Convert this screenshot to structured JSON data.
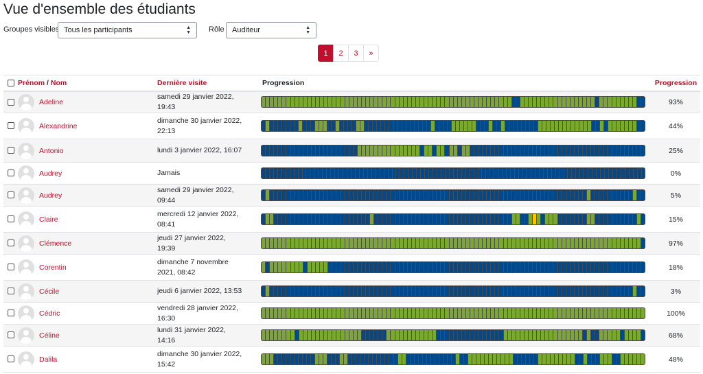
{
  "page": {
    "title": "Vue d'ensemble des étudiants"
  },
  "filters": {
    "groups_label": "Groupes visibles",
    "groups_value": "Tous les participants",
    "role_label": "Rôle",
    "role_value": "Auditeur"
  },
  "pagination": {
    "pages": [
      "1",
      "2",
      "3"
    ],
    "active": "1",
    "next": "»"
  },
  "colors": {
    "completed": "#7ba82f",
    "not_completed": "#00498c",
    "in_progress": "#ffc107",
    "accent": "#c10e2c"
  },
  "table": {
    "headers": {
      "first_name": "Prénom",
      "separator": " / ",
      "last_name": "Nom",
      "last_visit": "Dernière visite",
      "progress_bar": "Progression",
      "progress_pct": "Progression"
    },
    "rows": [
      {
        "name": "Adeline",
        "visit": "samedi 29 janvier 2022, 19:43",
        "pct": "93%",
        "height": 32,
        "bar": "CCCCCCCCCCCCCCCCCCCCCCCCCCCCCCCCCCCCCCCCCCCCCCCCCCCCCCCCCCCCNNCCCCCCCCCCCCCCCCCCNCCCCCCCCCNN"
      },
      {
        "name": "Alexandrine",
        "visit": "dimanche 30 janvier 2022, 22:13",
        "pct": "44%",
        "height": 38,
        "bar": "NCNNNNNNNCNNNCCCNNCNNNNCCNNNNNNNNNNNNNNNNCNNNNCCCCCCNNNCNNCNNNNNNNNCCCCCCCCCCCCCNNCNCCCCCCCNN"
      },
      {
        "name": "Antonio",
        "visit": "lundi 3 janvier 2022, 16:07",
        "pct": "25%",
        "height": 34,
        "bar": "NNNNNNNNNNNNNNNNNNNNNNNCCCCCCCCCCCCCCCNCCNCCNCCNCCNNNNNNNNNNNNNNNNNNNNNNNNNNNNNNNNNNNNNNNNNN"
      },
      {
        "name": "Audrey",
        "visit": "Jamais",
        "pct": "0%",
        "height": 32,
        "bar": "NNNNNNNNNNNNNNNNNNNNNNNNNNNNNNNNNNNNNNNNNNNNNNNNNNNNNNNNNNNNNNNNNNNNNNNNNNNNNNNNNNNNNNNNNNNNNN"
      },
      {
        "name": "Audrey",
        "visit": "samedi 29 janvier 2022, 09:44",
        "pct": "5%",
        "height": 32,
        "bar": "NCNNNNNNNNNNNNNNNNNNNNNNNNNNNNNNNNNNNNNNNNNNNNNNNNNNNNNNNNNNNNNNNNNNNNNNNNNNNNCNNNNNNNNNNCNN"
      },
      {
        "name": "Claire",
        "visit": "mercredi 12 janvier 2022, 08:41",
        "pct": "15%",
        "height": 38,
        "bar": "NCCNNNNNNNNNNNNNNNNNNNNNNNCNNNNNNNNNNNNNNNNNNNNNNNNNNNNNNNNNCCNNCPCNCCCNNNNNNNCCNNNNNNNNNNCN"
      },
      {
        "name": "Clémence",
        "visit": "jeudi 27 janvier 2022, 19:39",
        "pct": "97%",
        "height": 32,
        "bar": "CCCCCCCCCCCCCCCCCCCCCCCCCCCCCCCCCCCCCCCCCCCCCCCCCCCCCCCCCCCCCCCCCCCCCCCCCCCCCCCCCCCCCCCCCCCN"
      },
      {
        "name": "Corentin",
        "visit": "dimanche 7 novembre 2021, 08:42",
        "pct": "18%",
        "height": 38,
        "bar": "CNCCCCCCCCNCCCCCNNNNNNNNNNNNNNNNNNNNNNNNNNNNNNNNNNNNNNNNNNNNNNNNNNNNNNNNNNNNNNNNNNNNNNNNNNNN"
      },
      {
        "name": "Cécile",
        "visit": "jeudi 6 janvier 2022, 13:53",
        "pct": "3%",
        "height": 32,
        "bar": "NCNNNNNNNNNNNNNNNNNNNNNNNNNNNNNNNNNNNNNNNNNNNNNNNNNNNNNNNNNNNNNNNNNNNNNNNNNNNNNNNNNNNNNNNCNN"
      },
      {
        "name": "Cédric",
        "visit": "vendredi 28 janvier 2022, 16:30",
        "pct": "100%",
        "height": 32,
        "bar": "CCCCCCCCCCCCCCCCCCCCCCCCCCCCCCCCCCCCCCCCCCCCCCCCCCCCCCCCCCCCCCCCCCCCCCCCCCCCCCCCCCCCCCCCCCCC"
      },
      {
        "name": "Céline",
        "visit": "lundi 31 janvier 2022, 14:16",
        "pct": "68%",
        "height": 32,
        "bar": "CCCCCCCCNCCCCCCCCCCCCCCCNNNNNNCCCCCCCCCCCCNNNNNNNNNNNNNNNNCCCCCCCCCCCCCCCCCCCNCNNCCCCCNCCCCN"
      },
      {
        "name": "Dalila",
        "visit": "dimanche 30 janvier 2022, 15:42",
        "pct": "48%",
        "height": 38,
        "bar": "CCCNNNNNNNNNNCCCNNNCCNNNNNNNNNNNNCCNNNNNNNNNNNNCNNCCCCCCCCCCCNNNNNNCCCCCCCCCNNCNNNCCCNNCCCCCC"
      }
    ]
  }
}
